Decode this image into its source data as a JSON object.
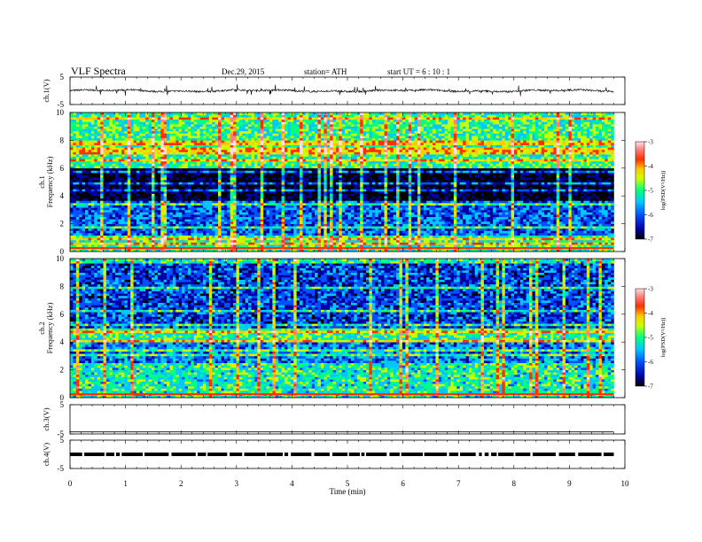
{
  "header": {
    "title": "VLF  Spectra",
    "date": "Dec.29, 2015",
    "station": "station= ATH",
    "start": "start  UT  =   6  : 10 : 1"
  },
  "chart_data": [
    {
      "type": "line",
      "name": "ch1-waveform",
      "ylabel": "ch.1(V)",
      "ylim": [
        -5,
        5
      ],
      "yticks": [
        "5",
        "-5"
      ],
      "xlim": [
        0,
        10
      ]
    },
    {
      "type": "heatmap",
      "name": "ch1-spectrogram",
      "ylabel": "ch.1\nFrequency  (kHz)",
      "ylim": [
        0,
        10
      ],
      "yticks": [
        "0",
        "2",
        "4",
        "6",
        "8",
        "10"
      ],
      "xlim": [
        0,
        10
      ],
      "data_end": 9.8,
      "colorbar": {
        "label": "log(PSD(V²/Hz))",
        "range": [
          -7,
          -3
        ],
        "ticks": [
          "-3",
          "-4",
          "-5",
          "-6",
          "-7"
        ]
      }
    },
    {
      "type": "heatmap",
      "name": "ch2-spectrogram",
      "ylabel": "ch.2\nFrequency  (kHz)",
      "ylim": [
        0,
        10
      ],
      "yticks": [
        "0",
        "2",
        "4",
        "6",
        "8",
        "10"
      ],
      "xlim": [
        0,
        10
      ],
      "data_end": 9.8,
      "colorbar": {
        "label": "log(PSD(V²/Hz))",
        "range": [
          -7,
          -3
        ],
        "ticks": [
          "-3",
          "-4",
          "-5",
          "-6",
          "-7"
        ]
      }
    },
    {
      "type": "line",
      "name": "ch3-waveform",
      "ylabel": "ch.3(V)",
      "ylim": [
        -5,
        5
      ],
      "yticks": [
        "5",
        "-5"
      ],
      "xlim": [
        0,
        10
      ]
    },
    {
      "type": "line",
      "name": "ch4-waveform",
      "ylabel": "ch.4(V)",
      "ylim": [
        -5,
        5
      ],
      "yticks": [
        "5",
        "-5"
      ],
      "xlim": [
        0,
        10
      ],
      "xlabel": "Time  (min)",
      "xticks": [
        "0",
        "1",
        "2",
        "3",
        "4",
        "5",
        "6",
        "7",
        "8",
        "9",
        "10"
      ]
    }
  ],
  "colors": {
    "frame": "#000000",
    "colormap": [
      "#000000",
      "#0000a0",
      "#0050ff",
      "#00c8ff",
      "#00ff80",
      "#c8ff00",
      "#ffc800",
      "#ff3000",
      "#ff8080",
      "#ffe0e0"
    ]
  }
}
